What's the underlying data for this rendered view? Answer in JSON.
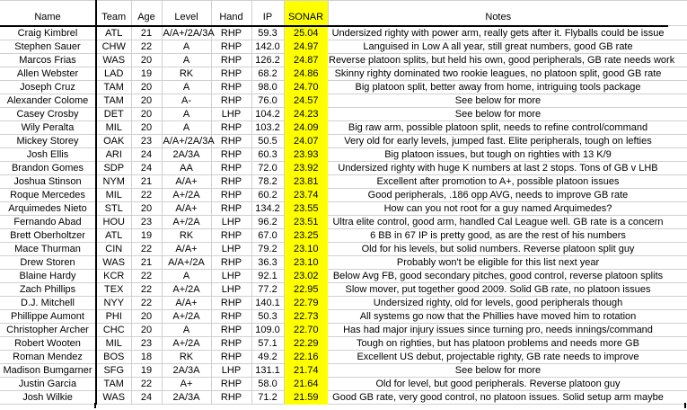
{
  "colors": {
    "highlight": "#ffff00",
    "gridline": "#d0d0d0",
    "rule": "#000000"
  },
  "table": {
    "columns": [
      "Name",
      "Team",
      "Age",
      "Level",
      "Hand",
      "IP",
      "SONAR",
      "Notes"
    ],
    "rows": [
      {
        "name": "Craig Kimbrel",
        "team": "ATL",
        "age": "21",
        "level": "A/A+/2A/3A",
        "hand": "RHP",
        "ip": "59.3",
        "sonar": "25.04",
        "notes": "Undersized righty with power arm, really gets after it. Flyballs could be issue"
      },
      {
        "name": "Stephen Sauer",
        "team": "CHW",
        "age": "22",
        "level": "A",
        "hand": "RHP",
        "ip": "142.0",
        "sonar": "24.97",
        "notes": "Languised in Low A all year, still great numbers, good GB rate"
      },
      {
        "name": "Marcos Frias",
        "team": "WAS",
        "age": "20",
        "level": "A",
        "hand": "RHP",
        "ip": "126.2",
        "sonar": "24.87",
        "notes": "Reverse platoon splits, but held his own, good peripherals, GB rate needs work"
      },
      {
        "name": "Allen Webster",
        "team": "LAD",
        "age": "19",
        "level": "RK",
        "hand": "RHP",
        "ip": "68.2",
        "sonar": "24.86",
        "notes": "Skinny righty dominated two rookie leagues, no platoon split, good GB rate"
      },
      {
        "name": "Joseph Cruz",
        "team": "TAM",
        "age": "20",
        "level": "A",
        "hand": "RHP",
        "ip": "98.0",
        "sonar": "24.70",
        "notes": "Big platoon split, better away from home, intriguing tools package"
      },
      {
        "name": "Alexander Colome",
        "team": "TAM",
        "age": "20",
        "level": "A-",
        "hand": "RHP",
        "ip": "76.0",
        "sonar": "24.57",
        "notes": "See below for more"
      },
      {
        "name": "Casey Crosby",
        "team": "DET",
        "age": "20",
        "level": "A",
        "hand": "LHP",
        "ip": "104.2",
        "sonar": "24.23",
        "notes": "See below for more"
      },
      {
        "name": "Wily Peralta",
        "team": "MIL",
        "age": "20",
        "level": "A",
        "hand": "RHP",
        "ip": "103.2",
        "sonar": "24.09",
        "notes": "Big raw arm, possible platoon split, needs to refine control/command"
      },
      {
        "name": "Mickey Storey",
        "team": "OAK",
        "age": "23",
        "level": "A/A+/2A/3A",
        "hand": "RHP",
        "ip": "50.5",
        "sonar": "24.07",
        "notes": "Very old for early levels, jumped fast. Elite peripherals, tough on lefties"
      },
      {
        "name": "Josh Ellis",
        "team": "ARI",
        "age": "24",
        "level": "2A/3A",
        "hand": "RHP",
        "ip": "60.3",
        "sonar": "23.93",
        "notes": "Big platoon issues, but tough on righties with 13 K/9"
      },
      {
        "name": "Brandon Gomes",
        "team": "SDP",
        "age": "24",
        "level": "AA",
        "hand": "RHP",
        "ip": "72.0",
        "sonar": "23.92",
        "notes": "Undersized righty with huge K numbers at last 2 stops. Tons of GB v LHB"
      },
      {
        "name": "Joshua Stinson",
        "team": "NYM",
        "age": "21",
        "level": "A/A+",
        "hand": "RHP",
        "ip": "78.2",
        "sonar": "23.81",
        "notes": "Excellent after promotion to A+, possible platoon issues"
      },
      {
        "name": "Roque Mercedes",
        "team": "MIL",
        "age": "22",
        "level": "A+/2A",
        "hand": "RHP",
        "ip": "60.2",
        "sonar": "23.74",
        "notes": "Good peripherals, .186 opp AVG, needs to improve GB rate"
      },
      {
        "name": "Arquimedes Nieto",
        "team": "STL",
        "age": "20",
        "level": "A/A+",
        "hand": "RHP",
        "ip": "134.2",
        "sonar": "23.55",
        "notes": "How can you not root for a guy named Arquimedes?"
      },
      {
        "name": "Fernando Abad",
        "team": "HOU",
        "age": "23",
        "level": "A+/2A",
        "hand": "LHP",
        "ip": "96.2",
        "sonar": "23.51",
        "notes": "Ultra elite control, good arm, handled Cal League well. GB rate is a concern"
      },
      {
        "name": "Brett Oberholtzer",
        "team": "ATL",
        "age": "19",
        "level": "RK",
        "hand": "RHP",
        "ip": "67.0",
        "sonar": "23.25",
        "notes": "6 BB in 67 IP is pretty good, as are the rest of his numbers"
      },
      {
        "name": "Mace Thurman",
        "team": "CIN",
        "age": "22",
        "level": "A/A+",
        "hand": "LHP",
        "ip": "79.2",
        "sonar": "23.10",
        "notes": "Old for his levels, but solid numbers. Reverse platoon split guy"
      },
      {
        "name": "Drew Storen",
        "team": "WAS",
        "age": "21",
        "level": "A/A+/2A",
        "hand": "RHP",
        "ip": "36.3",
        "sonar": "23.10",
        "notes": "Probably won't be eligible for this list next year"
      },
      {
        "name": "Blaine Hardy",
        "team": "KCR",
        "age": "22",
        "level": "A",
        "hand": "LHP",
        "ip": "92.1",
        "sonar": "23.02",
        "notes": "Below Avg FB, good secondary pitches, good control, reverse platoon splits"
      },
      {
        "name": "Zach Phillips",
        "team": "TEX",
        "age": "22",
        "level": "A+/2A",
        "hand": "LHP",
        "ip": "77.2",
        "sonar": "22.95",
        "notes": "Slow mover, put together good 2009. Solid GB rate, no platoon issues"
      },
      {
        "name": "D.J. Mitchell",
        "team": "NYY",
        "age": "22",
        "level": "A/A+",
        "hand": "RHP",
        "ip": "140.1",
        "sonar": "22.79",
        "notes": "Undersized righty, old for levels, good peripherals though"
      },
      {
        "name": "Phillippe Aumont",
        "team": "PHI",
        "age": "20",
        "level": "A+/2A",
        "hand": "RHP",
        "ip": "50.3",
        "sonar": "22.73",
        "notes": "All systems go now that the Phillies have moved him to rotation"
      },
      {
        "name": "Christopher Archer",
        "team": "CHC",
        "age": "20",
        "level": "A",
        "hand": "RHP",
        "ip": "109.0",
        "sonar": "22.70",
        "notes": "Has had major injury issues since turning pro, needs innings/command"
      },
      {
        "name": "Robert Wooten",
        "team": "MIL",
        "age": "23",
        "level": "A+/2A",
        "hand": "RHP",
        "ip": "57.1",
        "sonar": "22.29",
        "notes": "Tough on righties, but has platoon problems and needs more GB"
      },
      {
        "name": "Roman Mendez",
        "team": "BOS",
        "age": "18",
        "level": "RK",
        "hand": "RHP",
        "ip": "49.2",
        "sonar": "22.16",
        "notes": "Excellent US debut, projectable righty, GB rate needs to improve"
      },
      {
        "name": "Madison Bumgarner",
        "team": "SFG",
        "age": "19",
        "level": "2A/3A",
        "hand": "LHP",
        "ip": "131.1",
        "sonar": "21.74",
        "notes": "See below for more"
      },
      {
        "name": "Justin Garcia",
        "team": "TAM",
        "age": "22",
        "level": "A+",
        "hand": "RHP",
        "ip": "58.0",
        "sonar": "21.64",
        "notes": "Old for level, but good peripherals. Reverse platoon guy"
      },
      {
        "name": "Josh Wilkie",
        "team": "WAS",
        "age": "24",
        "level": "2A/3A",
        "hand": "RHP",
        "ip": "71.2",
        "sonar": "21.59",
        "notes": "Good GB rate, very good control, no platoon issues. Solid setup arm maybe"
      }
    ]
  }
}
